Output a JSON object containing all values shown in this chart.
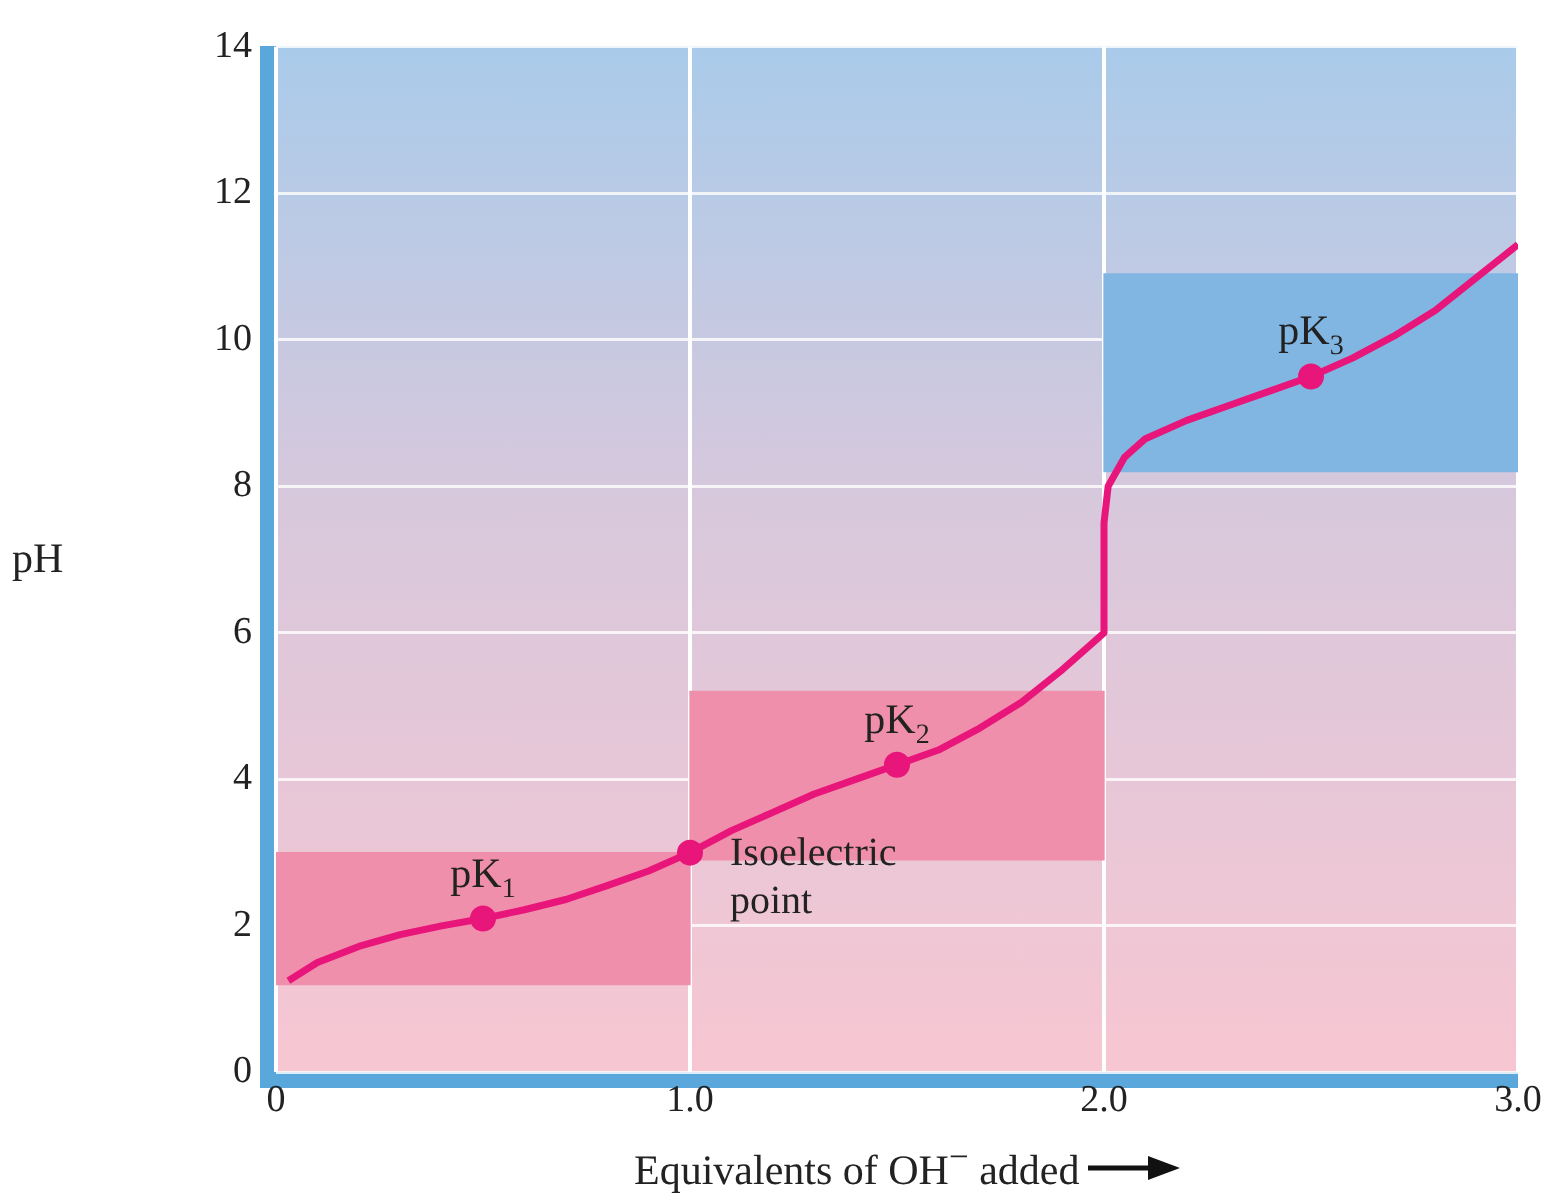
{
  "chart_data": {
    "type": "line",
    "xlabel": "Equivalents of OH$^{−}$ added",
    "ylabel": "pH",
    "xlim": [
      0,
      3
    ],
    "xticks": [
      0,
      {
        "value": 1,
        "label": "1.0"
      },
      {
        "value": 2,
        "label": "2.0"
      },
      {
        "value": 3,
        "label": "3.0"
      }
    ],
    "ylim": [
      0,
      14
    ],
    "yticks": [
      0,
      2,
      4,
      6,
      8,
      10,
      12,
      14
    ],
    "grid": true,
    "legend": false,
    "series": [
      {
        "type": "bar",
        "x": [
          0.5,
          1.5,
          2.5
        ],
        "base": [
          1.2,
          2.9,
          8.2
        ],
        "values": [
          1.8,
          2.3,
          2.7
        ],
        "colors": [
          "#f08fab",
          "#f08fab",
          "#82b6e2"
        ]
      },
      {
        "color": "#e8157a",
        "marker": "none",
        "x": [
          0.03,
          0.1,
          0.2,
          0.3,
          0.4,
          0.5,
          0.6,
          0.7,
          0.8,
          0.9,
          1.0,
          1.1,
          1.2,
          1.3,
          1.4,
          1.5,
          1.6,
          1.7,
          1.8,
          1.9,
          1.97,
          2.0,
          2.0,
          2.01,
          2.05,
          2.1,
          2.2,
          2.3,
          2.4,
          2.5,
          2.6,
          2.7,
          2.8,
          2.9,
          3.0
        ],
        "values": [
          1.25,
          1.5,
          1.72,
          1.88,
          2.0,
          2.1,
          2.22,
          2.36,
          2.55,
          2.75,
          3.0,
          3.3,
          3.55,
          3.8,
          4.0,
          4.2,
          4.4,
          4.7,
          5.05,
          5.5,
          5.85,
          6.0,
          7.5,
          8.0,
          8.4,
          8.65,
          8.9,
          9.1,
          9.3,
          9.5,
          9.75,
          10.05,
          10.4,
          10.85,
          11.3
        ]
      },
      {
        "type": "scatter",
        "color": "#e8157a",
        "marker": "circle",
        "x": [
          0.5,
          1.0,
          1.5,
          2.5
        ],
        "values": [
          2.1,
          3.0,
          4.2,
          9.5
        ]
      }
    ],
    "annotations": [
      {
        "text": "pK$_{1}$",
        "x": 0.5,
        "y": 2.1
      },
      {
        "text": "Isoelectric point",
        "x": 1.0,
        "y": 3.0
      },
      {
        "text": "pK$_{2}$",
        "x": 1.5,
        "y": 4.2
      },
      {
        "text": "pK$_{3}$",
        "x": 2.5,
        "y": 9.5
      }
    ]
  }
}
